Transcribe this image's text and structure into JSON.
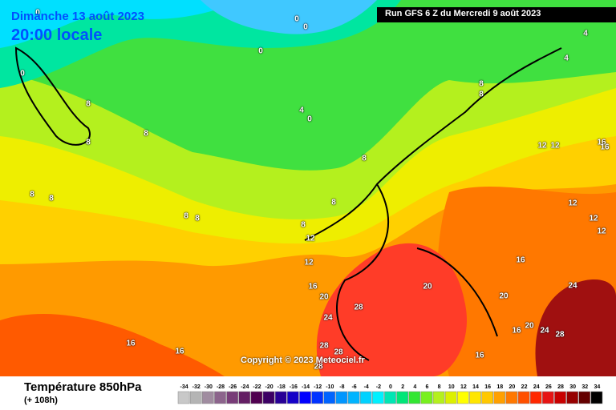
{
  "header": {
    "date": "Dimanche 13 août 2023",
    "time": "20:00 locale",
    "run": "Run GFS 6 Z du Mercredi 9 août 2023"
  },
  "copyright": "Copyright © 2023 Meteociel.fr",
  "legend": {
    "title": "Température 850hPa",
    "lead": "(+ 108h)",
    "ticks": [
      -34,
      -32,
      -30,
      -28,
      -26,
      -24,
      -22,
      -20,
      -18,
      -16,
      -14,
      -12,
      -10,
      -8,
      -6,
      -4,
      -2,
      0,
      2,
      4,
      6,
      8,
      10,
      12,
      14,
      16,
      18,
      20,
      22,
      24,
      26,
      28,
      30,
      32,
      34
    ],
    "colors": [
      "#c8c8c8",
      "#b4b4b4",
      "#a08ca0",
      "#8c648c",
      "#783c78",
      "#641e64",
      "#500050",
      "#3c0064",
      "#280096",
      "#1400c8",
      "#0000ff",
      "#0032ff",
      "#0064ff",
      "#0096ff",
      "#00b4ff",
      "#00d2ff",
      "#00f0ff",
      "#00e6b4",
      "#00e678",
      "#32e632",
      "#78f01e",
      "#b4f01e",
      "#dcf000",
      "#ffff00",
      "#ffe600",
      "#ffc800",
      "#ffa000",
      "#ff7800",
      "#ff5000",
      "#ff2800",
      "#e61414",
      "#c80000",
      "#960000",
      "#640000",
      "#000000"
    ]
  },
  "contour_labels": [
    0,
    0,
    0,
    0,
    0,
    4,
    4,
    8,
    8,
    8,
    4,
    0,
    8,
    8,
    8,
    8,
    8,
    8,
    8,
    8,
    8,
    12,
    12,
    12,
    12,
    16,
    16,
    12,
    12,
    12,
    16,
    16,
    20,
    20,
    28,
    24,
    20,
    24,
    20,
    24,
    16,
    28,
    16,
    16,
    28,
    28,
    28,
    16
  ]
}
